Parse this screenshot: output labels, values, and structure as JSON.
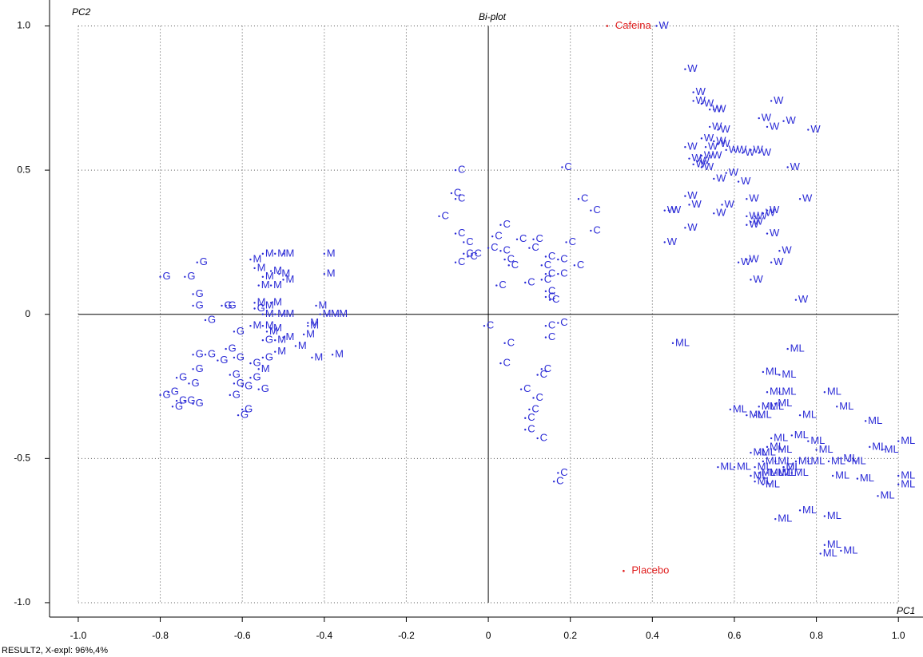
{
  "chart_data": {
    "type": "scatter",
    "title": "Bi-plot",
    "x_label": "PC1",
    "y_label": "PC2",
    "footer": "RESULT2, X-expl: 96%,4%",
    "xlim": [
      -1.07,
      1.06
    ],
    "ylim": [
      -1.05,
      1.09
    ],
    "xticks": [
      {
        "value": -1,
        "label": "-1.0"
      },
      -0.8,
      -0.6,
      -0.4,
      -0.2,
      0,
      0.2,
      0.4,
      0.6,
      0.8,
      {
        "value": 1,
        "label": "1.0"
      }
    ],
    "yticks": [
      {
        "value": -1,
        "label": "-1.0"
      },
      -0.5,
      0,
      0.5,
      {
        "value": 1,
        "label": "1.0"
      }
    ],
    "grid": true,
    "series": [
      {
        "name": "G",
        "color": "#2b2bd6",
        "x": [
          -0.8,
          -0.74,
          -0.71,
          -0.72,
          -0.72,
          -0.69,
          -0.65,
          -0.64,
          -0.57,
          -0.62,
          -0.72,
          -0.69,
          -0.64,
          -0.66,
          -0.62,
          -0.76,
          -0.72,
          -0.73,
          -0.78,
          -0.8,
          -0.76,
          -0.74,
          -0.72,
          -0.77,
          -0.63,
          -0.62,
          -0.63,
          -0.6,
          -0.58,
          -0.58,
          -0.56,
          -0.6,
          -0.61,
          -0.55,
          -0.55
        ],
        "y": [
          0.13,
          0.13,
          0.18,
          0.07,
          0.03,
          -0.02,
          0.03,
          0.03,
          0.02,
          -0.06,
          -0.14,
          -0.14,
          -0.12,
          -0.16,
          -0.15,
          -0.22,
          -0.19,
          -0.24,
          -0.27,
          -0.28,
          -0.3,
          -0.3,
          -0.31,
          -0.32,
          -0.21,
          -0.24,
          -0.28,
          -0.25,
          -0.17,
          -0.22,
          -0.26,
          -0.33,
          -0.35,
          -0.09,
          -0.15
        ]
      },
      {
        "name": "M",
        "color": "#2b2bd6",
        "x": [
          -0.58,
          -0.57,
          -0.55,
          -0.52,
          -0.5,
          -0.55,
          -0.53,
          -0.51,
          -0.56,
          -0.53,
          -0.5,
          -0.4,
          -0.4,
          -0.57,
          -0.55,
          -0.53,
          -0.52,
          -0.55,
          -0.5,
          -0.42,
          -0.41,
          -0.39,
          -0.37,
          -0.58,
          -0.55,
          -0.53,
          -0.52,
          -0.5,
          -0.44,
          -0.45,
          -0.47,
          -0.43,
          -0.38,
          -0.52,
          -0.56,
          -0.54,
          -0.44
        ],
        "y": [
          0.19,
          0.16,
          0.21,
          0.21,
          0.21,
          0.13,
          0.15,
          0.14,
          0.1,
          0.1,
          0.12,
          0.21,
          0.14,
          0.04,
          0.03,
          0.04,
          0.0,
          0.0,
          0.0,
          0.03,
          0.0,
          0.0,
          0.0,
          -0.04,
          -0.04,
          -0.05,
          -0.09,
          -0.08,
          -0.03,
          -0.07,
          -0.11,
          -0.15,
          -0.14,
          -0.13,
          -0.19,
          -0.06,
          -0.04
        ]
      },
      {
        "name": "C",
        "color": "#2b2bd6",
        "x": [
          -0.08,
          -0.09,
          -0.08,
          -0.12,
          -0.08,
          -0.06,
          -0.05,
          -0.04,
          -0.08,
          -0.06,
          0.03,
          0.01,
          0.03,
          0.0,
          0.07,
          0.11,
          0.1,
          0.05,
          0.04,
          0.14,
          0.17,
          0.13,
          0.14,
          0.17,
          0.13,
          0.18,
          0.22,
          0.25,
          0.25,
          0.19,
          0.21,
          0.09,
          0.02,
          0.14,
          0.14,
          0.15,
          -0.01,
          0.04,
          0.14,
          0.17,
          0.14,
          0.03,
          0.13,
          0.12,
          0.08,
          0.11,
          0.1,
          0.09,
          0.09,
          0.12,
          0.17,
          0.16
        ],
        "y": [
          0.5,
          0.42,
          0.4,
          0.34,
          0.28,
          0.25,
          0.2,
          0.21,
          0.18,
          0.21,
          0.31,
          0.27,
          0.22,
          0.23,
          0.26,
          0.26,
          0.23,
          0.17,
          0.19,
          0.2,
          0.19,
          0.17,
          0.14,
          0.14,
          0.12,
          0.51,
          0.4,
          0.36,
          0.29,
          0.25,
          0.17,
          0.11,
          0.1,
          0.08,
          0.06,
          0.05,
          -0.04,
          -0.1,
          -0.04,
          -0.03,
          -0.08,
          -0.17,
          -0.19,
          -0.21,
          -0.26,
          -0.29,
          -0.33,
          -0.36,
          -0.4,
          -0.43,
          -0.55,
          -0.58
        ]
      },
      {
        "name": "W",
        "color": "#2b2bd6",
        "x": [
          0.48,
          0.5,
          0.5,
          0.52,
          0.54,
          0.55,
          0.66,
          0.69,
          0.68,
          0.72,
          0.78,
          0.54,
          0.56,
          0.52,
          0.55,
          0.56,
          0.53,
          0.48,
          0.52,
          0.54,
          0.49,
          0.51,
          0.5,
          0.52,
          0.6,
          0.62,
          0.66,
          0.64,
          0.58,
          0.73,
          0.55,
          0.58,
          0.61,
          0.48,
          0.49,
          0.43,
          0.44,
          0.55,
          0.57,
          0.63,
          0.63,
          0.65,
          0.67,
          0.68,
          0.76,
          0.63,
          0.64,
          0.68,
          0.71,
          0.69,
          0.63,
          0.61,
          0.64,
          0.75,
          0.48,
          0.43,
          0.41
        ],
        "y": [
          0.85,
          0.77,
          0.74,
          0.73,
          0.71,
          0.71,
          0.68,
          0.74,
          0.65,
          0.67,
          0.64,
          0.65,
          0.64,
          0.61,
          0.6,
          0.59,
          0.58,
          0.58,
          0.55,
          0.55,
          0.54,
          0.53,
          0.52,
          0.51,
          0.57,
          0.56,
          0.56,
          0.57,
          0.57,
          0.51,
          0.47,
          0.49,
          0.46,
          0.41,
          0.38,
          0.36,
          0.36,
          0.35,
          0.38,
          0.4,
          0.34,
          0.34,
          0.35,
          0.36,
          0.4,
          0.31,
          0.32,
          0.28,
          0.22,
          0.18,
          0.19,
          0.18,
          0.12,
          0.05,
          0.3,
          0.25,
          1.0
        ]
      },
      {
        "name": "ML",
        "color": "#2b2bd6",
        "x": [
          0.45,
          0.73,
          0.67,
          0.71,
          0.68,
          0.71,
          0.82,
          0.85,
          0.59,
          0.63,
          0.66,
          0.68,
          0.7,
          0.65,
          0.76,
          0.92,
          0.69,
          0.74,
          0.68,
          0.7,
          0.78,
          0.8,
          0.86,
          0.93,
          1.0,
          0.64,
          0.66,
          0.67,
          0.7,
          0.75,
          0.72,
          0.78,
          0.83,
          0.88,
          0.96,
          0.65,
          0.66,
          0.68,
          0.64,
          0.65,
          0.7,
          0.71,
          0.74,
          0.72,
          0.84,
          0.9,
          1.0,
          1.0,
          0.95,
          0.67,
          0.76,
          0.7,
          0.82,
          0.82,
          0.81,
          0.86,
          0.6,
          0.56
        ],
        "y": [
          -0.1,
          -0.12,
          -0.2,
          -0.21,
          -0.27,
          -0.27,
          -0.27,
          -0.32,
          -0.33,
          -0.35,
          -0.32,
          -0.32,
          -0.31,
          -0.35,
          -0.35,
          -0.37,
          -0.43,
          -0.42,
          -0.46,
          -0.47,
          -0.44,
          -0.47,
          -0.5,
          -0.46,
          -0.44,
          -0.48,
          -0.48,
          -0.51,
          -0.51,
          -0.51,
          -0.53,
          -0.51,
          -0.51,
          -0.51,
          -0.47,
          -0.53,
          -0.55,
          -0.55,
          -0.56,
          -0.58,
          -0.55,
          -0.55,
          -0.55,
          -0.53,
          -0.56,
          -0.57,
          -0.56,
          -0.59,
          -0.63,
          -0.59,
          -0.68,
          -0.71,
          -0.7,
          -0.8,
          -0.83,
          -0.82,
          -0.53,
          -0.53
        ]
      }
    ],
    "annotations": [
      {
        "text": "Cafeina",
        "color": "#e02020",
        "x": 0.29,
        "y": 1.0
      },
      {
        "text": "Placebo",
        "color": "#e02020",
        "x": 0.33,
        "y": -0.89
      }
    ]
  }
}
